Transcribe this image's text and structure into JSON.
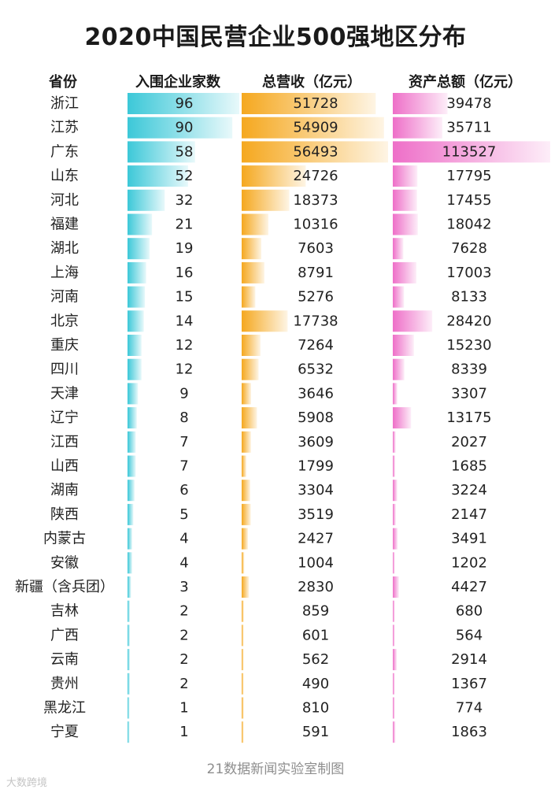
{
  "title": "2020中国民营企业500强地区分布",
  "source": "21数据新闻实验室制图",
  "watermark": "大数跨境",
  "colors": {
    "count": "#3cc8d8",
    "revenue": "#f5a81f",
    "assets": "#ee6fc8",
    "text": "#222222"
  },
  "chart_data": {
    "type": "table",
    "columns": [
      "省份",
      "入围企业家数",
      "总营收（亿元）",
      "资产总额（亿元）"
    ],
    "rows": [
      {
        "province": "浙江",
        "count": 96,
        "revenue": 51728,
        "assets": 39478
      },
      {
        "province": "江苏",
        "count": 90,
        "revenue": 54909,
        "assets": 35711
      },
      {
        "province": "广东",
        "count": 58,
        "revenue": 56493,
        "assets": 113527
      },
      {
        "province": "山东",
        "count": 52,
        "revenue": 24726,
        "assets": 17795
      },
      {
        "province": "河北",
        "count": 32,
        "revenue": 18373,
        "assets": 17455
      },
      {
        "province": "福建",
        "count": 21,
        "revenue": 10316,
        "assets": 18042
      },
      {
        "province": "湖北",
        "count": 19,
        "revenue": 7603,
        "assets": 7628
      },
      {
        "province": "上海",
        "count": 16,
        "revenue": 8791,
        "assets": 17003
      },
      {
        "province": "河南",
        "count": 15,
        "revenue": 5276,
        "assets": 8133
      },
      {
        "province": "北京",
        "count": 14,
        "revenue": 17738,
        "assets": 28420
      },
      {
        "province": "重庆",
        "count": 12,
        "revenue": 7264,
        "assets": 15230
      },
      {
        "province": "四川",
        "count": 12,
        "revenue": 6532,
        "assets": 8339
      },
      {
        "province": "天津",
        "count": 9,
        "revenue": 3646,
        "assets": 3307
      },
      {
        "province": "辽宁",
        "count": 8,
        "revenue": 5908,
        "assets": 13175
      },
      {
        "province": "江西",
        "count": 7,
        "revenue": 3609,
        "assets": 2027
      },
      {
        "province": "山西",
        "count": 7,
        "revenue": 1799,
        "assets": 1685
      },
      {
        "province": "湖南",
        "count": 6,
        "revenue": 3304,
        "assets": 3224
      },
      {
        "province": "陕西",
        "count": 5,
        "revenue": 3519,
        "assets": 2147
      },
      {
        "province": "内蒙古",
        "count": 4,
        "revenue": 2427,
        "assets": 3491
      },
      {
        "province": "安徽",
        "count": 4,
        "revenue": 1004,
        "assets": 1202
      },
      {
        "province": "新疆（含兵团）",
        "count": 3,
        "revenue": 2830,
        "assets": 4427
      },
      {
        "province": "吉林",
        "count": 2,
        "revenue": 859,
        "assets": 680
      },
      {
        "province": "广西",
        "count": 2,
        "revenue": 601,
        "assets": 564
      },
      {
        "province": "云南",
        "count": 2,
        "revenue": 562,
        "assets": 2914
      },
      {
        "province": "贵州",
        "count": 2,
        "revenue": 490,
        "assets": 1367
      },
      {
        "province": "黑龙江",
        "count": 1,
        "revenue": 810,
        "assets": 774
      },
      {
        "province": "宁夏",
        "count": 1,
        "revenue": 591,
        "assets": 1863
      }
    ]
  }
}
